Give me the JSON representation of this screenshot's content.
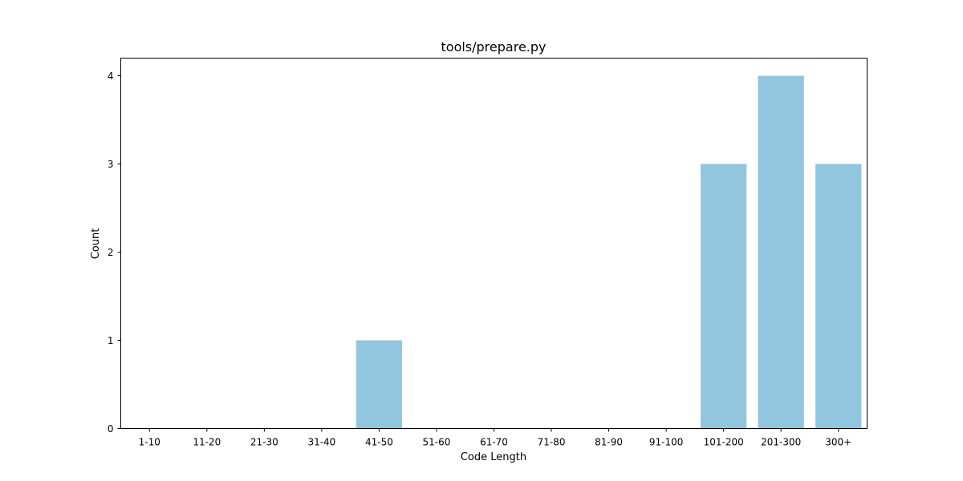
{
  "chart_data": {
    "type": "bar",
    "title": "tools/prepare.py",
    "xlabel": "Code Length",
    "ylabel": "Count",
    "categories": [
      "1-10",
      "11-20",
      "21-30",
      "31-40",
      "41-50",
      "51-60",
      "61-70",
      "71-80",
      "81-90",
      "91-100",
      "101-200",
      "201-300",
      "300+"
    ],
    "values": [
      0,
      0,
      0,
      0,
      1,
      0,
      0,
      0,
      0,
      0,
      3,
      4,
      3
    ],
    "ylim": [
      0,
      4.2
    ],
    "yticks": [
      0,
      1,
      2,
      3,
      4
    ],
    "grid": false,
    "colors": {
      "bar": "#92c5de",
      "axis": "#000000"
    }
  }
}
